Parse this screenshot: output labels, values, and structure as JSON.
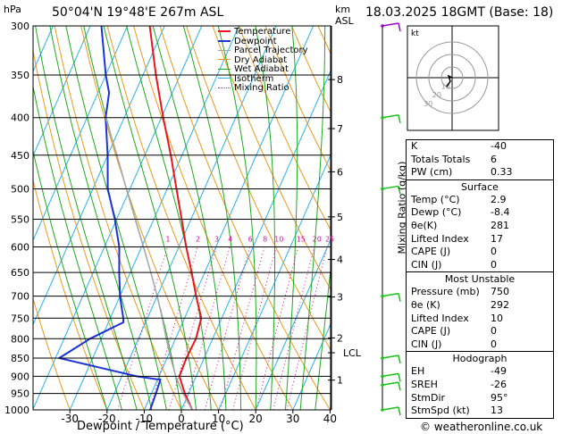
{
  "header": {
    "hpa_label": "hPa",
    "location": "50°04'N  19°48'E  267m  ASL",
    "km_label": "km",
    "asl_label": "ASL",
    "datetime": "18.03.2025  18GMT  (Base: 18)"
  },
  "colors": {
    "temperature": "#e8171c",
    "dewpoint": "#1e33d6",
    "parcel": "#a6a6a6",
    "dry_adiabat": "#e89b1a",
    "wet_adiabat": "#1faa1f",
    "isotherm": "#28b4e6",
    "mixing_ratio": "#d4129c",
    "wind": "#19c219"
  },
  "chart_data": {
    "type": "line",
    "xlabel": "Dewpoint / Temperature (°C)",
    "ylabel": "hPa",
    "right_ylabel": "Mixing Ratio (g/kg)",
    "x_ticks": [
      "-30",
      "-20",
      "-10",
      "0",
      "10",
      "20",
      "30",
      "40"
    ],
    "x_tick_values": [
      -30,
      -20,
      -10,
      0,
      10,
      20,
      30,
      40
    ],
    "xlim": [
      -40,
      40
    ],
    "p_ticks": [
      "300",
      "350",
      "400",
      "450",
      "500",
      "550",
      "600",
      "650",
      "700",
      "750",
      "800",
      "850",
      "900",
      "950",
      "1000"
    ],
    "p_tick_values": [
      300,
      350,
      400,
      450,
      500,
      550,
      600,
      650,
      700,
      750,
      800,
      850,
      900,
      950,
      1000
    ],
    "ylim": [
      1000,
      300
    ],
    "skew_deg_per_decade_note": "skewed",
    "km_ticks": [
      {
        "label": "8",
        "p": 355
      },
      {
        "label": "7",
        "p": 414
      },
      {
        "label": "6",
        "p": 474
      },
      {
        "label": "5",
        "p": 546
      },
      {
        "label": "4",
        "p": 624
      },
      {
        "label": "3",
        "p": 702
      },
      {
        "label": "2",
        "p": 798
      },
      {
        "label": "LCL",
        "p": 836
      },
      {
        "label": "1",
        "p": 911
      }
    ],
    "mixing_ratio_labels": [
      {
        "label": "1",
        "w": 1
      },
      {
        "label": "2",
        "w": 2
      },
      {
        "label": "3",
        "w": 3
      },
      {
        "label": "4",
        "w": 4
      },
      {
        "label": "6",
        "w": 6
      },
      {
        "label": "8",
        "w": 8
      },
      {
        "label": "10",
        "w": 10
      },
      {
        "label": "15",
        "w": 15
      },
      {
        "label": "20",
        "w": 20
      },
      {
        "label": "25",
        "w": 25
      }
    ],
    "legend": [
      "Temperature",
      "Dewpoint",
      "Parcel Trajectory",
      "Dry Adiabat",
      "Wet Adiabat",
      "Isotherm",
      "Mixing Ratio"
    ],
    "legend_placement": "top-left",
    "series": [
      {
        "name": "Temperature",
        "points": [
          [
            1000,
            2.9
          ],
          [
            950,
            -1.0
          ],
          [
            900,
            -4.5
          ],
          [
            850,
            -4.8
          ],
          [
            800,
            -4.5
          ],
          [
            750,
            -5.5
          ],
          [
            700,
            -9.5
          ],
          [
            650,
            -13.5
          ],
          [
            600,
            -18.0
          ],
          [
            550,
            -22.5
          ],
          [
            500,
            -27.5
          ],
          [
            450,
            -33.0
          ],
          [
            400,
            -39.5
          ],
          [
            350,
            -46.5
          ],
          [
            300,
            -54.0
          ]
        ]
      },
      {
        "name": "Dewpoint",
        "points": [
          [
            1000,
            -8.4
          ],
          [
            950,
            -8.8
          ],
          [
            910,
            -9.2
          ],
          [
            900,
            -16.0
          ],
          [
            850,
            -39.0
          ],
          [
            800,
            -33.0
          ],
          [
            760,
            -26.0
          ],
          [
            750,
            -26.5
          ],
          [
            700,
            -30.0
          ],
          [
            650,
            -33.0
          ],
          [
            600,
            -36.0
          ],
          [
            550,
            -40.5
          ],
          [
            500,
            -46.0
          ],
          [
            450,
            -50.0
          ],
          [
            400,
            -55.0
          ],
          [
            370,
            -57.0
          ],
          [
            350,
            -60.0
          ],
          [
            300,
            -67.0
          ]
        ]
      },
      {
        "name": "Parcel Trajectory",
        "points": [
          [
            1000,
            2.9
          ],
          [
            950,
            -1.5
          ],
          [
            900,
            -5.5
          ],
          [
            850,
            -9.0
          ],
          [
            800,
            -12.5
          ],
          [
            750,
            -16.0
          ],
          [
            700,
            -20.0
          ],
          [
            650,
            -24.5
          ],
          [
            600,
            -29.5
          ],
          [
            550,
            -35.0
          ],
          [
            500,
            -41.0
          ],
          [
            450,
            -47.5
          ],
          [
            400,
            -55.0
          ]
        ]
      }
    ],
    "wind_barbs": [
      {
        "p": 300,
        "color": "#9900cc"
      },
      {
        "p": 400
      },
      {
        "p": 500
      },
      {
        "p": 700
      },
      {
        "p": 850
      },
      {
        "p": 900
      },
      {
        "p": 925
      },
      {
        "p": 1000
      }
    ]
  },
  "hodograph": {
    "unit_label": "kt",
    "ring_labels": [
      "10",
      "20",
      "30"
    ]
  },
  "indices": {
    "rows1": [
      {
        "k": "K",
        "v": "-40"
      },
      {
        "k": "Totals Totals",
        "v": "6"
      },
      {
        "k": "PW (cm)",
        "v": "0.33"
      }
    ],
    "surface_title": "Surface",
    "surface": [
      {
        "k": "Temp (°C)",
        "v": "2.9"
      },
      {
        "k": "Dewp (°C)",
        "v": "-8.4"
      },
      {
        "k": "θe(K)",
        "v": "281"
      },
      {
        "k": "Lifted Index",
        "v": "17"
      },
      {
        "k": "CAPE (J)",
        "v": "0"
      },
      {
        "k": "CIN (J)",
        "v": "0"
      }
    ],
    "mu_title": "Most Unstable",
    "mu": [
      {
        "k": "Pressure (mb)",
        "v": "750"
      },
      {
        "k": "θe (K)",
        "v": "292"
      },
      {
        "k": "Lifted Index",
        "v": "10"
      },
      {
        "k": "CAPE (J)",
        "v": "0"
      },
      {
        "k": "CIN (J)",
        "v": "0"
      }
    ],
    "hodo_title": "Hodograph",
    "hodo": [
      {
        "k": "EH",
        "v": "-49"
      },
      {
        "k": "SREH",
        "v": "-26"
      },
      {
        "k": "StmDir",
        "v": "95°"
      },
      {
        "k": "StmSpd (kt)",
        "v": "13"
      }
    ]
  },
  "footer": {
    "copyright": "© weatheronline.co.uk"
  }
}
